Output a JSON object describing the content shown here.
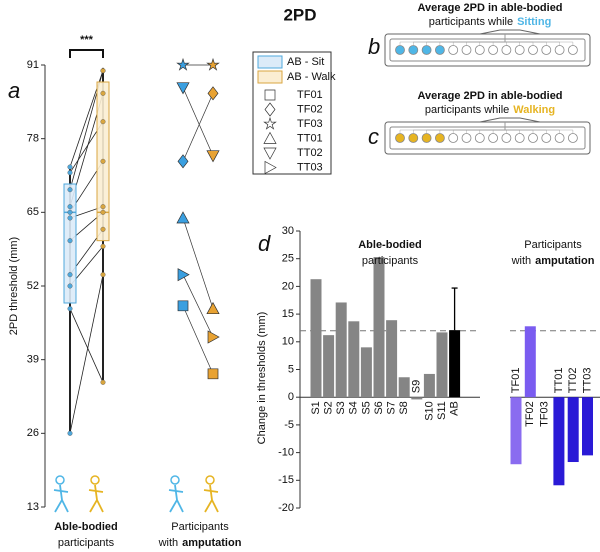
{
  "figure": {
    "title": "2PD",
    "panel_labels": [
      "a",
      "b",
      "c",
      "d"
    ]
  },
  "electrode_panels": [
    {
      "line1": "Average 2PD in able-bodied",
      "line2": "participants while",
      "highlight": "Sitting",
      "color": "#4fb6e6"
    },
    {
      "line1": "Average 2PD in able-bodied",
      "line2": "participants while",
      "highlight": "Walking",
      "color": "#e6b422"
    }
  ],
  "chart_data": [
    {
      "type": "box",
      "ylabel": "2PD threshold (mm)",
      "ylim": [
        13,
        91
      ],
      "yticks": [
        13,
        26,
        39,
        52,
        65,
        78,
        91
      ],
      "significance": "***",
      "boxes": [
        {
          "name": "AB - Sit",
          "color": "#4fa8dc",
          "fill": "#dcebf8",
          "whisker_low": 26,
          "q1": 49,
          "median": 65,
          "q3": 70,
          "whisker_high": 73
        },
        {
          "name": "AB - Walk",
          "color": "#d9a640",
          "fill": "#fbeed3",
          "whisker_low": 35,
          "q1": 60,
          "median": 65,
          "q3": 88,
          "whisker_high": 90.5
        }
      ],
      "paired_points": {
        "sit": [
          26,
          48,
          52,
          54,
          60,
          64,
          65,
          66,
          69,
          72,
          73
        ],
        "walk": [
          54,
          35,
          59,
          62,
          65,
          66,
          74,
          86,
          90,
          81,
          90
        ]
      },
      "amputee": {
        "colors": [
          "#3a9fe0",
          "#e8a232"
        ],
        "series": [
          {
            "name": "TF01",
            "marker": "square",
            "values": [
              48.5,
              36.5
            ]
          },
          {
            "name": "TF02",
            "marker": "diamond",
            "values": [
              74,
              86
            ]
          },
          {
            "name": "TF03",
            "marker": "star",
            "values": [
              91,
              91
            ]
          },
          {
            "name": "TT01",
            "marker": "triangle-up",
            "values": [
              64,
              48
            ]
          },
          {
            "name": "TT02",
            "marker": "triangle-down",
            "values": [
              87,
              75
            ]
          },
          {
            "name": "TT03",
            "marker": "triangle-right",
            "values": [
              54,
              43
            ]
          }
        ]
      },
      "group_labels": [
        {
          "bold": "Able-bodied",
          "line2": "participants"
        },
        {
          "line1": "Participants",
          "prefix": "with",
          "bold": "amputation"
        }
      ]
    },
    {
      "type": "bar",
      "ylabel": "Change in thresholds (mm)",
      "ylim": [
        -20,
        30
      ],
      "yticks": [
        -20,
        -15,
        -10,
        -5,
        0,
        5,
        10,
        15,
        20,
        25,
        30
      ],
      "reference_line": 12,
      "groups": [
        {
          "title_bold": "Able-bodied",
          "title": "participants",
          "categories": [
            "S1",
            "S2",
            "S3",
            "S4",
            "S5",
            "S6",
            "S7",
            "S8",
            "S9",
            "S10",
            "S11",
            "AB"
          ],
          "values": [
            21.3,
            11.2,
            17.1,
            13.7,
            9.0,
            25.3,
            13.9,
            3.6,
            -0.4,
            4.2,
            11.7,
            12.1
          ],
          "errors": [
            null,
            null,
            null,
            null,
            null,
            null,
            null,
            null,
            null,
            null,
            null,
            7.6
          ],
          "colors": [
            "#858585",
            "#858585",
            "#858585",
            "#858585",
            "#858585",
            "#858585",
            "#858585",
            "#858585",
            "#858585",
            "#858585",
            "#858585",
            "#000000"
          ]
        },
        {
          "title": "Participants",
          "title_prefix": "with",
          "title_bold": "amputation",
          "categories": [
            "TF01",
            "TF02",
            "TF03",
            "TT01",
            "TT02",
            "TT03"
          ],
          "values": [
            -12.1,
            12.8,
            0,
            -15.9,
            -11.7,
            -10.5
          ],
          "errors": [
            null,
            null,
            null,
            null,
            null,
            null
          ],
          "colors": [
            "#8a6cf0",
            "#7a5cf0",
            "#7a5cf0",
            "#2a1ad6",
            "#2a1ad6",
            "#2a1ad6"
          ]
        }
      ]
    }
  ]
}
